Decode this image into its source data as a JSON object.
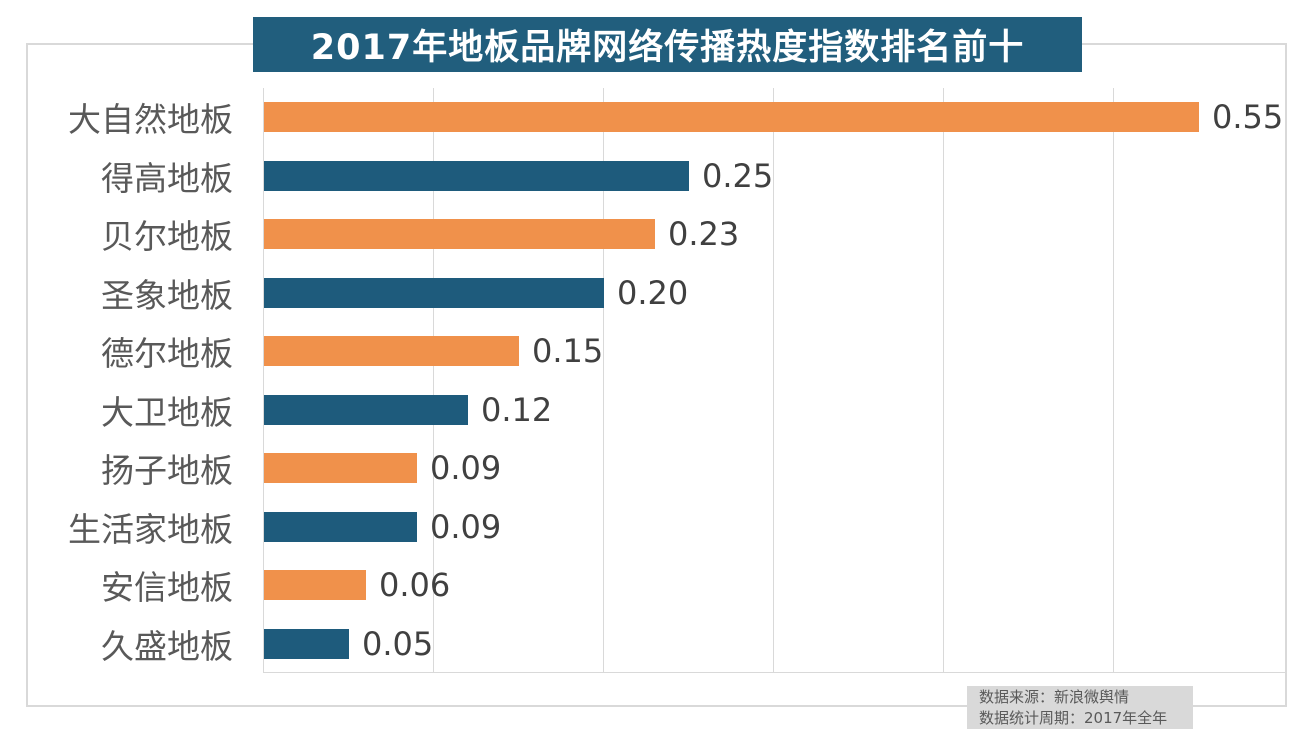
{
  "title": "2017年地板品牌网络传播热度指数排名前十",
  "source": {
    "line1": "数据来源：新浪微舆情",
    "line2": "数据统计周期：2017年全年"
  },
  "colors": {
    "banner_bg": "#215E7D",
    "banner_text": "#FFFFFF",
    "bar_orange": "#F0914B",
    "bar_teal": "#1E5B7C",
    "grid": "#D9D9D9",
    "border": "#D9D9D9",
    "category_label": "#595959",
    "value_label": "#404040",
    "source_bg": "#D9D9D9",
    "source_text": "#595959"
  },
  "chart_data": {
    "type": "bar",
    "orientation": "horizontal",
    "title": "2017年地板品牌网络传播热度指数排名前十",
    "categories": [
      "大自然地板",
      "得高地板",
      "贝尔地板",
      "圣象地板",
      "德尔地板",
      "大卫地板",
      "扬子地板",
      "生活家地板",
      "安信地板",
      "久盛地板"
    ],
    "values": [
      0.55,
      0.25,
      0.23,
      0.2,
      0.15,
      0.12,
      0.09,
      0.09,
      0.06,
      0.05
    ],
    "value_labels": [
      "0.55",
      "0.25",
      "0.23",
      "0.20",
      "0.15",
      "0.12",
      "0.09",
      "0.09",
      "0.06",
      "0.05"
    ],
    "xlabel": "",
    "ylabel": "",
    "xlim": [
      0,
      0.6
    ],
    "gridline_values": [
      0.1,
      0.2,
      0.3,
      0.4,
      0.5
    ],
    "grid": true,
    "legend": false,
    "bar_color_pattern": [
      "#F0914B",
      "#1E5B7C"
    ],
    "annotations": [
      "数据来源：新浪微舆情",
      "数据统计周期：2017年全年"
    ]
  }
}
